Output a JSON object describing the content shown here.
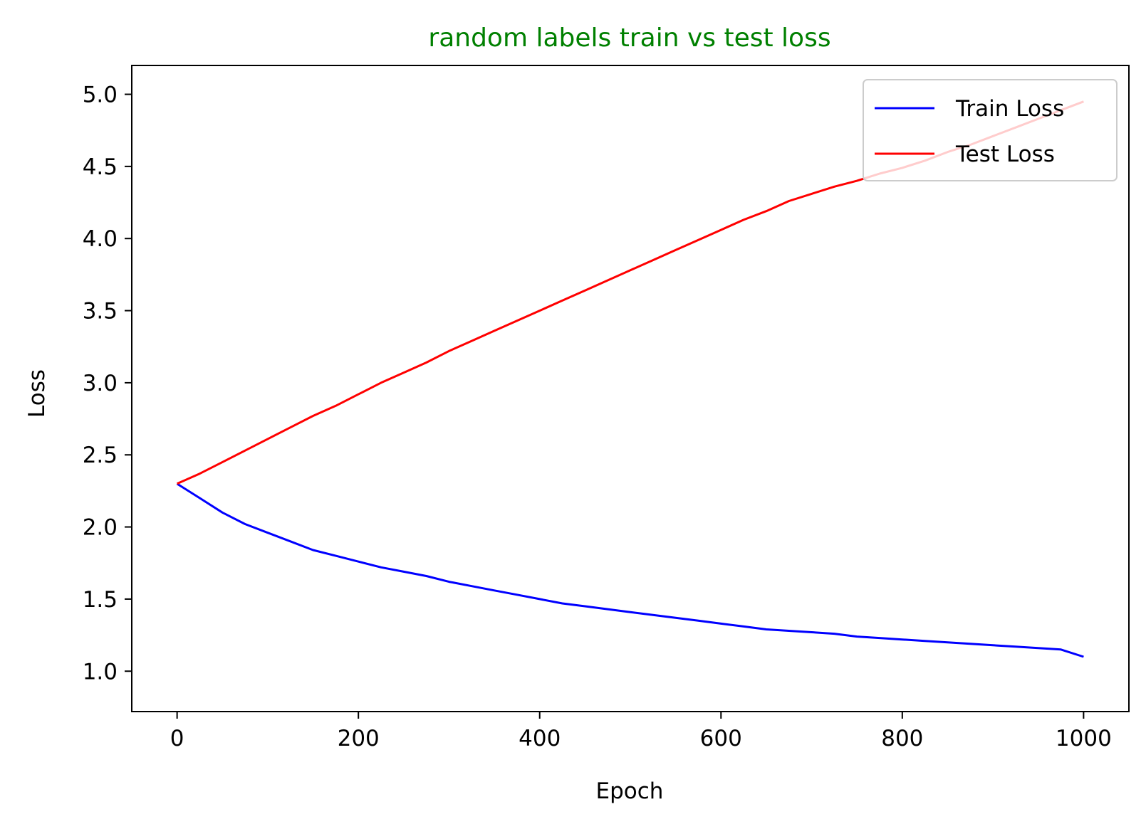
{
  "chart_data": {
    "type": "line",
    "title": "random labels train vs test loss",
    "title_color": "#008000",
    "xlabel": "Epoch",
    "ylabel": "Loss",
    "xlim": [
      -50,
      1050
    ],
    "ylim": [
      0.72,
      5.2
    ],
    "xticks": [
      0,
      200,
      400,
      600,
      800,
      1000
    ],
    "xtick_labels": [
      "0",
      "200",
      "400",
      "600",
      "800",
      "1000"
    ],
    "yticks": [
      1.0,
      1.5,
      2.0,
      2.5,
      3.0,
      3.5,
      4.0,
      4.5,
      5.0
    ],
    "ytick_labels": [
      "1.0",
      "1.5",
      "2.0",
      "2.5",
      "3.0",
      "3.5",
      "4.0",
      "4.5",
      "5.0"
    ],
    "grid": false,
    "legend_position": "upper right",
    "series": [
      {
        "name": "Train Loss",
        "color": "#0000ff",
        "x": [
          0,
          25,
          50,
          75,
          100,
          125,
          150,
          175,
          200,
          225,
          250,
          275,
          300,
          325,
          350,
          375,
          400,
          425,
          450,
          475,
          500,
          525,
          550,
          575,
          600,
          625,
          650,
          675,
          700,
          725,
          750,
          775,
          800,
          825,
          850,
          875,
          900,
          925,
          950,
          975,
          1000
        ],
        "y": [
          2.3,
          2.2,
          2.1,
          2.02,
          1.96,
          1.9,
          1.84,
          1.8,
          1.76,
          1.72,
          1.69,
          1.66,
          1.62,
          1.59,
          1.56,
          1.53,
          1.5,
          1.47,
          1.45,
          1.43,
          1.41,
          1.39,
          1.37,
          1.35,
          1.33,
          1.31,
          1.29,
          1.28,
          1.27,
          1.26,
          1.24,
          1.23,
          1.22,
          1.21,
          1.2,
          1.19,
          1.18,
          1.17,
          1.16,
          1.15,
          1.1
        ]
      },
      {
        "name": "Test Loss",
        "color": "#ff0000",
        "x": [
          0,
          25,
          50,
          75,
          100,
          125,
          150,
          175,
          200,
          225,
          250,
          275,
          300,
          325,
          350,
          375,
          400,
          425,
          450,
          475,
          500,
          525,
          550,
          575,
          600,
          625,
          650,
          675,
          700,
          725,
          750,
          775,
          800,
          825,
          850,
          875,
          900,
          925,
          950,
          975,
          1000
        ],
        "y": [
          2.3,
          2.37,
          2.45,
          2.53,
          2.61,
          2.69,
          2.77,
          2.84,
          2.92,
          3.0,
          3.07,
          3.14,
          3.22,
          3.29,
          3.36,
          3.43,
          3.5,
          3.57,
          3.64,
          3.71,
          3.78,
          3.85,
          3.92,
          3.99,
          4.06,
          4.13,
          4.19,
          4.26,
          4.31,
          4.36,
          4.4,
          4.45,
          4.49,
          4.54,
          4.6,
          4.65,
          4.71,
          4.77,
          4.83,
          4.89,
          4.95
        ]
      }
    ]
  }
}
